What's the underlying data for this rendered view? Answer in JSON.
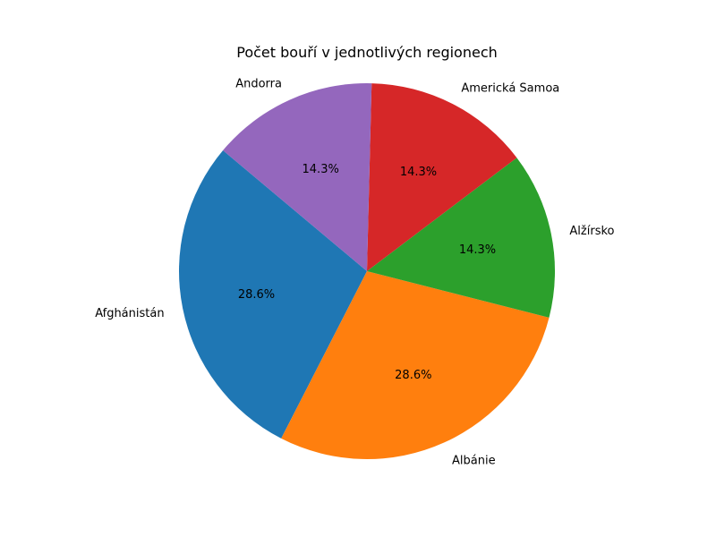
{
  "chart_data": {
    "type": "pie",
    "title": "Počet bouří v jednotlivých regionech",
    "start_angle_deg": 140,
    "direction": "counterclockwise",
    "slices": [
      {
        "label": "Afghánistán",
        "value": 2,
        "percent_label": "28.6%",
        "color": "#1f77b4"
      },
      {
        "label": "Albánie",
        "value": 2,
        "percent_label": "28.6%",
        "color": "#ff7f0e"
      },
      {
        "label": "Alžírsko",
        "value": 1,
        "percent_label": "14.3%",
        "color": "#2ca02c"
      },
      {
        "label": "Americká Samoa",
        "value": 1,
        "percent_label": "14.3%",
        "color": "#d62728"
      },
      {
        "label": "Andorra",
        "value": 1,
        "percent_label": "14.3%",
        "color": "#9467bd"
      }
    ]
  }
}
